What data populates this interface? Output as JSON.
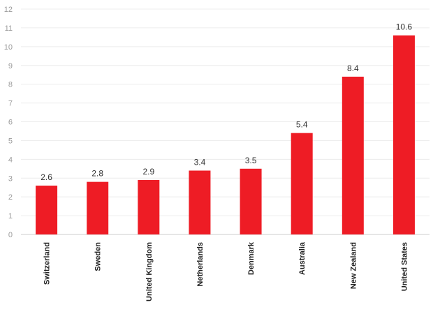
{
  "chart_data": {
    "type": "bar",
    "categories": [
      "Switzerland",
      "Sweden",
      "United Kingdom",
      "Netherlands",
      "Denmark",
      "Australia",
      "New Zealand",
      "United States"
    ],
    "values": [
      2.6,
      2.8,
      2.9,
      3.4,
      3.5,
      5.4,
      8.4,
      10.6
    ],
    "data_labels": [
      "2.6",
      "2.8",
      "2.9",
      "3.4",
      "3.5",
      "5.4",
      "8.4",
      "10.6"
    ],
    "title": "",
    "xlabel": "",
    "ylabel": "",
    "ylim": [
      0,
      12
    ],
    "yticks": [
      0,
      1,
      2,
      3,
      4,
      5,
      6,
      7,
      8,
      9,
      10,
      11,
      12
    ],
    "grid": true,
    "legend": "none",
    "colors": {
      "bar": "#ee1c25"
    }
  }
}
